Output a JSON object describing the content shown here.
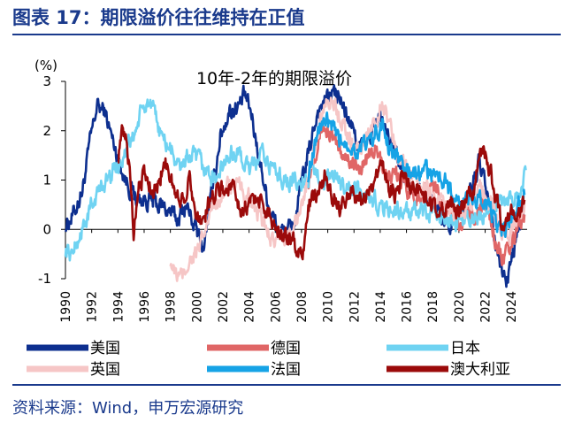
{
  "figure_title": "图表 17：期限溢价往往维持在正值",
  "source": "资料来源：Wind，申万宏源研究",
  "chart_data": {
    "type": "line",
    "title": "10年-2年的期限溢价",
    "ylabel": "(%)",
    "xlabel": "",
    "ylim": [
      -1,
      3
    ],
    "yticks": [
      -1,
      0,
      1,
      2,
      3
    ],
    "xlim": [
      1990,
      2025.2
    ],
    "xticks": [
      "1990",
      "1992",
      "1994",
      "1996",
      "1998",
      "2000",
      "2002",
      "2004",
      "2006",
      "2008",
      "2010",
      "2012",
      "2014",
      "2016",
      "2018",
      "2020",
      "2022",
      "2024"
    ],
    "grid": false,
    "legend_position": "bottom",
    "series": [
      {
        "name": "美国",
        "color": "#0d2f8f",
        "x": [
          1990.0,
          1990.6,
          1991.3,
          1991.9,
          1992.4,
          1993.0,
          1993.6,
          1994.2,
          1994.8,
          1995.5,
          1996.3,
          1997.0,
          1997.8,
          1998.5,
          1999.2,
          1999.8,
          2000.5,
          2001.2,
          2001.8,
          2002.5,
          2003.2,
          2003.7,
          2004.2,
          2004.8,
          2005.5,
          2006.2,
          2006.9,
          2007.5,
          2008.0,
          2008.6,
          2009.2,
          2009.8,
          2010.4,
          2011.0,
          2011.6,
          2012.2,
          2012.8,
          2013.4,
          2014.0,
          2014.7,
          2015.4,
          2016.1,
          2016.8,
          2017.5,
          2018.2,
          2018.8,
          2019.5,
          2020.2,
          2020.9,
          2021.5,
          2022.0,
          2022.4,
          2022.8,
          2023.2,
          2023.7,
          2024.2,
          2024.6,
          2025.0
        ],
        "y": [
          0.1,
          0.3,
          0.8,
          1.8,
          2.5,
          2.4,
          1.8,
          1.3,
          0.9,
          0.6,
          0.6,
          0.5,
          0.4,
          0.2,
          0.5,
          0.1,
          -0.4,
          0.8,
          1.9,
          2.4,
          2.5,
          2.7,
          2.3,
          1.4,
          0.5,
          0.0,
          -0.1,
          0.2,
          0.9,
          1.6,
          2.4,
          2.6,
          2.8,
          2.6,
          2.2,
          1.8,
          1.6,
          2.0,
          2.3,
          1.8,
          1.4,
          1.0,
          0.9,
          0.7,
          0.5,
          0.2,
          0.1,
          0.4,
          0.8,
          1.3,
          0.9,
          0.3,
          -0.3,
          -0.8,
          -1.0,
          -0.4,
          0.0,
          0.3
        ]
      },
      {
        "name": "德国",
        "color": "#e06666",
        "x": [
          2008.5,
          2009.0,
          2009.6,
          2010.2,
          2010.8,
          2011.5,
          2012.2,
          2012.9,
          2013.6,
          2014.2,
          2014.8,
          2015.5,
          2016.2,
          2016.8,
          2017.5,
          2018.2,
          2018.9,
          2019.6,
          2020.3,
          2021.0,
          2021.6,
          2022.1,
          2022.5,
          2023.0,
          2023.5,
          2024.0,
          2024.5,
          2025.0
        ],
        "y": [
          1.0,
          1.6,
          2.1,
          1.9,
          1.6,
          1.5,
          1.2,
          1.4,
          1.6,
          1.3,
          1.0,
          1.1,
          0.8,
          0.7,
          0.8,
          0.8,
          0.5,
          0.3,
          0.2,
          0.3,
          0.4,
          0.5,
          0.1,
          -0.4,
          -0.6,
          -0.4,
          0.1,
          0.3
        ]
      },
      {
        "name": "日本",
        "color": "#6fd3f2",
        "x": [
          1990.0,
          1990.5,
          1991.0,
          1991.6,
          1992.2,
          1992.8,
          1993.4,
          1994.0,
          1994.6,
          1995.2,
          1995.7,
          1996.3,
          1996.9,
          1997.5,
          1998.1,
          1998.7,
          1999.3,
          2000.0,
          2000.7,
          2001.4,
          2002.1,
          2002.8,
          2003.5,
          2004.2,
          2004.9,
          2005.6,
          2006.3,
          2007.0,
          2007.7,
          2008.4,
          2009.1,
          2009.8,
          2010.5,
          2011.2,
          2011.9,
          2012.6,
          2013.3,
          2014.0,
          2014.7,
          2015.4,
          2016.1,
          2016.8,
          2017.5,
          2018.2,
          2018.9,
          2019.6,
          2020.3,
          2021.0,
          2021.7,
          2022.4,
          2023.1,
          2023.7,
          2024.3,
          2024.8,
          2025.1
        ],
        "y": [
          -0.4,
          -0.5,
          -0.2,
          0.2,
          0.6,
          0.9,
          1.1,
          1.3,
          1.6,
          1.9,
          2.3,
          2.6,
          2.2,
          1.8,
          1.6,
          1.2,
          1.5,
          1.4,
          1.2,
          1.0,
          1.3,
          1.6,
          1.4,
          1.2,
          1.5,
          1.3,
          1.1,
          1.0,
          0.9,
          1.0,
          1.1,
          1.0,
          1.0,
          0.9,
          0.8,
          0.7,
          0.6,
          0.5,
          0.4,
          0.4,
          0.3,
          0.3,
          0.3,
          0.3,
          0.2,
          0.2,
          0.2,
          0.3,
          0.3,
          0.4,
          0.5,
          0.6,
          0.7,
          0.9,
          1.2
        ]
      },
      {
        "name": "英国",
        "color": "#f6c6c6",
        "x": [
          1998.0,
          1998.3,
          1998.8,
          1999.3,
          1999.8,
          2000.3,
          2000.9,
          2001.5,
          2002.1,
          2002.7,
          2003.3,
          2004.0,
          2004.6,
          2005.2,
          2005.8,
          2006.4,
          2007.0,
          2007.6,
          2008.2,
          2008.8,
          2009.3,
          2009.8,
          2010.2,
          2010.7,
          2011.2,
          2011.8,
          2012.4,
          2013.0,
          2013.6,
          2014.1,
          2014.7,
          2015.3,
          2016.0,
          2016.7,
          2017.4,
          2018.1,
          2018.8,
          2019.5,
          2020.2,
          2020.9,
          2021.6,
          2022.2,
          2022.7,
          2023.2,
          2023.7,
          2024.2,
          2024.7,
          2025.0
        ],
        "y": [
          -0.6,
          -0.9,
          -1.0,
          -0.7,
          -0.5,
          -0.4,
          0.2,
          0.6,
          0.8,
          0.9,
          0.8,
          0.6,
          0.3,
          0.1,
          -0.2,
          -0.3,
          -0.1,
          0.2,
          0.6,
          1.4,
          2.1,
          2.6,
          2.7,
          2.4,
          2.2,
          1.7,
          1.6,
          1.9,
          2.2,
          2.6,
          2.1,
          1.6,
          1.2,
          0.9,
          0.8,
          0.7,
          0.6,
          0.3,
          0.4,
          0.6,
          0.8,
          0.6,
          0.4,
          0.0,
          -0.1,
          0.1,
          0.3,
          0.5
        ]
      },
      {
        "name": "法国",
        "color": "#16a3e6",
        "x": [
          2008.5,
          2009.0,
          2009.6,
          2010.2,
          2010.8,
          2011.5,
          2012.2,
          2012.9,
          2013.6,
          2014.2,
          2014.8,
          2015.5,
          2016.2,
          2016.8,
          2017.5,
          2018.2,
          2018.9,
          2019.6,
          2020.3,
          2021.0,
          2021.6,
          2022.1,
          2022.5,
          2023.0,
          2023.5,
          2024.0,
          2024.5,
          2025.0
        ],
        "y": [
          1.1,
          1.8,
          2.2,
          2.1,
          1.8,
          1.8,
          1.6,
          1.7,
          1.9,
          2.1,
          1.6,
          1.4,
          1.2,
          1.1,
          1.2,
          1.1,
          1.0,
          0.6,
          0.5,
          0.6,
          0.7,
          0.6,
          0.3,
          0.0,
          -0.1,
          0.2,
          0.5,
          0.7
        ]
      },
      {
        "name": "澳大利亚",
        "color": "#9b0a0a",
        "x": [
          1994.0,
          1994.3,
          1994.6,
          1994.9,
          1995.2,
          1995.6,
          1996.0,
          1996.5,
          1997.0,
          1997.5,
          1998.0,
          1998.5,
          1999.0,
          1999.5,
          2000.0,
          2000.5,
          2001.0,
          2001.6,
          2002.2,
          2002.8,
          2003.4,
          2004.0,
          2004.6,
          2005.2,
          2005.8,
          2006.4,
          2007.0,
          2007.5,
          2008.0,
          2008.6,
          2009.2,
          2009.8,
          2010.4,
          2011.0,
          2011.6,
          2012.2,
          2012.8,
          2013.4,
          2014.0,
          2014.6,
          2015.2,
          2015.8,
          2016.4,
          2017.0,
          2017.6,
          2018.2,
          2018.8,
          2019.4,
          2020.0,
          2020.6,
          2021.2,
          2021.8,
          2022.4,
          2022.9,
          2023.4,
          2023.9,
          2024.4,
          2024.8,
          2025.0
        ],
        "y": [
          1.5,
          1.9,
          1.8,
          1.2,
          0.0,
          1.0,
          1.1,
          0.9,
          0.8,
          1.4,
          1.1,
          0.6,
          0.7,
          1.0,
          0.3,
          0.1,
          0.6,
          0.9,
          0.8,
          0.9,
          0.4,
          0.5,
          0.7,
          0.4,
          0.2,
          0.0,
          -0.2,
          -0.3,
          -0.6,
          0.5,
          0.7,
          1.1,
          0.6,
          0.4,
          0.8,
          0.6,
          0.6,
          0.8,
          1.5,
          0.9,
          0.7,
          1.1,
          0.8,
          0.7,
          0.6,
          0.5,
          0.4,
          0.6,
          0.3,
          0.6,
          0.9,
          1.6,
          1.2,
          0.5,
          -0.1,
          0.4,
          0.3,
          0.5,
          0.6
        ]
      }
    ]
  }
}
